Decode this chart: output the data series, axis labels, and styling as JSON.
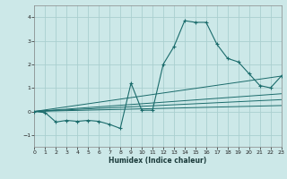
{
  "xlabel": "Humidex (Indice chaleur)",
  "xlim": [
    0,
    23
  ],
  "ylim": [
    -1.5,
    4.5
  ],
  "xticks": [
    0,
    1,
    2,
    3,
    4,
    5,
    6,
    7,
    8,
    9,
    10,
    11,
    12,
    13,
    14,
    15,
    16,
    17,
    18,
    19,
    20,
    21,
    22,
    23
  ],
  "yticks": [
    -1,
    0,
    1,
    2,
    3,
    4
  ],
  "bg_color": "#cce8e8",
  "grid_color": "#aacfcf",
  "line_color": "#1a6b6b",
  "series": [
    [
      0,
      0.0
    ],
    [
      1,
      -0.05
    ],
    [
      2,
      -0.45
    ],
    [
      3,
      -0.38
    ],
    [
      4,
      -0.42
    ],
    [
      5,
      -0.38
    ],
    [
      6,
      -0.42
    ],
    [
      7,
      -0.55
    ],
    [
      8,
      -0.72
    ],
    [
      9,
      1.2
    ],
    [
      10,
      0.05
    ],
    [
      11,
      0.05
    ],
    [
      12,
      2.0
    ],
    [
      13,
      2.75
    ],
    [
      14,
      3.85
    ],
    [
      15,
      3.78
    ],
    [
      16,
      3.78
    ],
    [
      17,
      2.85
    ],
    [
      18,
      2.25
    ],
    [
      19,
      2.1
    ],
    [
      20,
      1.6
    ],
    [
      21,
      1.1
    ],
    [
      22,
      1.0
    ],
    [
      23,
      1.5
    ]
  ],
  "ref_lines": [
    [
      [
        0,
        0.0
      ],
      [
        23,
        1.5
      ]
    ],
    [
      [
        0,
        0.0
      ],
      [
        23,
        0.75
      ]
    ],
    [
      [
        0,
        0.0
      ],
      [
        23,
        0.5
      ]
    ],
    [
      [
        0,
        0.0
      ],
      [
        23,
        0.25
      ]
    ]
  ]
}
